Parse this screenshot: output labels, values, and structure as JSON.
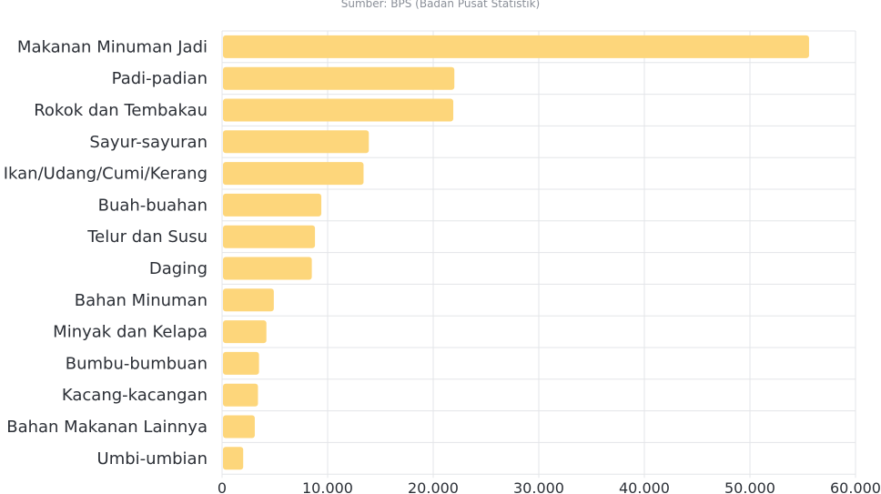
{
  "chart_data": {
    "type": "bar",
    "orientation": "horizontal",
    "subtitle": "Sumber: BPS (Badan Pusat Statistik)",
    "categories": [
      "Makanan Minuman Jadi",
      "Padi-padian",
      "Rokok dan Tembakau",
      "Sayur-sayuran",
      "Ikan/Udang/Cumi/Kerang",
      "Buah-buahan",
      "Telur dan Susu",
      "Daging",
      "Bahan Minuman",
      "Minyak dan Kelapa",
      "Bumbu-bumbuan",
      "Kacang-kacangan",
      "Bahan Makanan Lainnya",
      "Umbi-umbian"
    ],
    "values": [
      55600,
      22000,
      21900,
      13900,
      13400,
      9400,
      8800,
      8500,
      4900,
      4200,
      3500,
      3400,
      3100,
      2000
    ],
    "xlim": [
      0,
      60000
    ],
    "ticks": [
      0,
      10000,
      20000,
      30000,
      40000,
      50000,
      60000
    ],
    "tick_labels": [
      "0",
      "10.000",
      "20.000",
      "30.000",
      "40.000",
      "50.000",
      "60.000"
    ],
    "bar_color": "#fdd67b",
    "grid": true,
    "xlabel": "",
    "ylabel": ""
  }
}
